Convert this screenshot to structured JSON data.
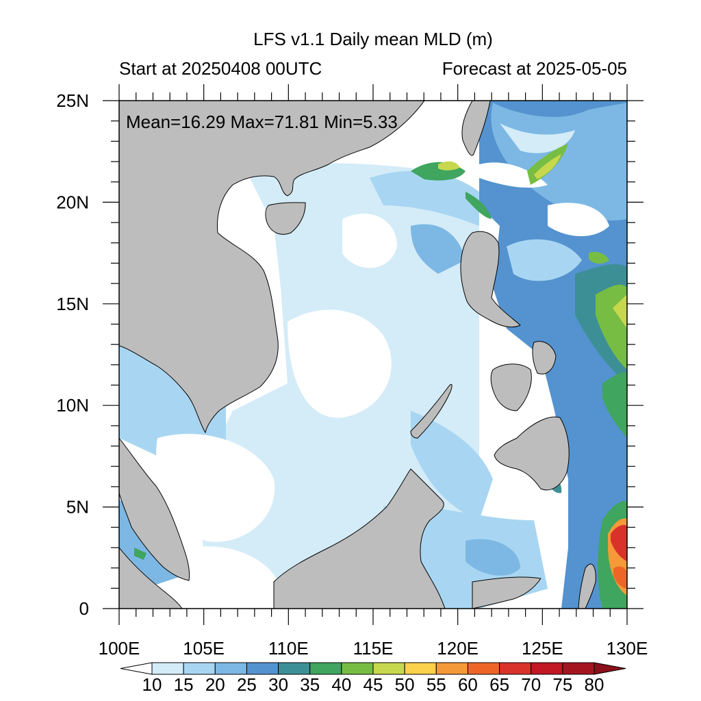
{
  "title": "LFS v1.1 Daily mean MLD (m)",
  "subtitle_left": "Start at 20250408 00UTC",
  "subtitle_right": "Forecast at 2025-05-05",
  "stats": "Mean=16.29  Max=71.81  Min=5.33",
  "map": {
    "lon_range": [
      100,
      130
    ],
    "lat_range": [
      0,
      25
    ],
    "x_tick_labels": [
      "100E",
      "105E",
      "110E",
      "115E",
      "120E",
      "125E",
      "130E"
    ],
    "y_tick_labels": [
      "25N",
      "20N",
      "15N",
      "10N",
      "5N",
      "0"
    ],
    "land_color": "#bdbdbd",
    "variable": "Mixed layer depth",
    "units": "m"
  },
  "colorbar": {
    "labels": [
      "10",
      "15",
      "20",
      "25",
      "30",
      "35",
      "40",
      "45",
      "50",
      "55",
      "60",
      "65",
      "70",
      "75",
      "80"
    ],
    "colors": [
      "#ffffff",
      "#d4ecf8",
      "#a8d6f2",
      "#7db8e4",
      "#5493cf",
      "#3d8f96",
      "#3fa55f",
      "#77bd43",
      "#c7d84e",
      "#fbd04b",
      "#f59a38",
      "#ed6628",
      "#d9322a",
      "#c21823",
      "#a51520",
      "#8a0f1a"
    ]
  }
}
